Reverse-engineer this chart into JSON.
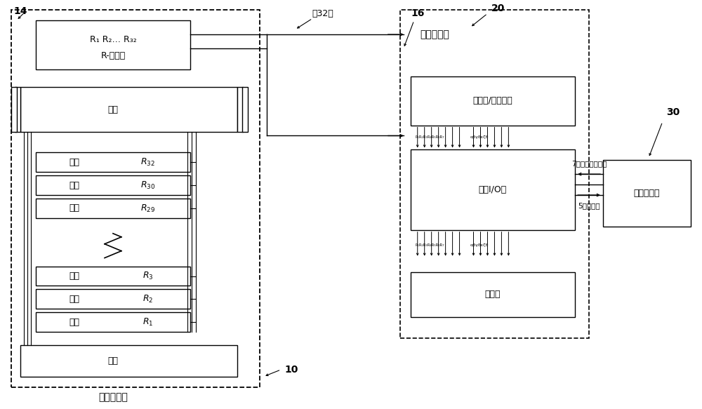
{
  "label_14": "14",
  "label_16": "16",
  "label_20": "20",
  "label_30": "30",
  "label_10": "10",
  "text_gong32xin": "全32芜",
  "text_r_connector_line1": "R₁ R₂… R₃₂",
  "text_r_connector_line2": "R-连接器",
  "text_dingban": "顶板",
  "text_dixban": "底板",
  "text_bangwei": "棒位探测器",
  "text_shujucaijiju": "数据采集柜",
  "text_detector": "探测器/编码器卡",
  "text_dataio": "数据I/O卡",
  "text_baojingka": "报警卡",
  "text_bangweiluoji": "棒位逻辑柜",
  "text_7bit": "7位地址（并行）",
  "text_5bit": "5位葛莱码",
  "text_xianquan": "线圈",
  "coil_labels": [
    "$R_{32}$",
    "$R_{30}$",
    "$R_{29}$",
    "$R_3$",
    "$R_2$",
    "$R_1$"
  ]
}
